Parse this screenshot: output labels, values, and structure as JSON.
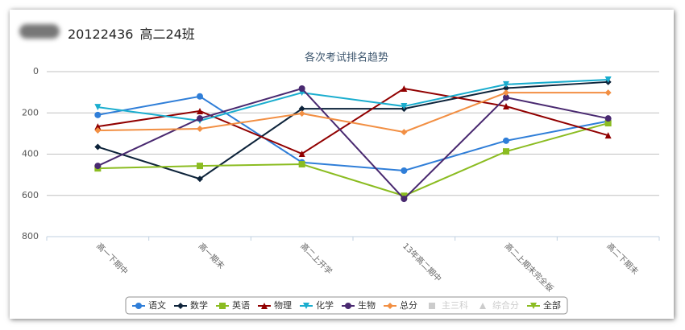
{
  "header": {
    "student_id": "20122436",
    "class_name": "高二24班"
  },
  "chart_data": {
    "type": "line",
    "title": "各次考试排名趋势",
    "categories": [
      "高一下期中",
      "高一期末",
      "高二上开学",
      "13年高二期中",
      "高二上期末完全版",
      "高二下期末"
    ],
    "ylim": [
      0,
      800
    ],
    "yticks": [
      0,
      200,
      400,
      600,
      800
    ],
    "y_reversed": true,
    "grid": true,
    "legend": "bottom",
    "series": [
      {
        "name": "语文",
        "color": "#2f7ed8",
        "marker": "circle",
        "values": [
          210,
          120,
          440,
          480,
          335,
          240
        ]
      },
      {
        "name": "数学",
        "color": "#0d233a",
        "marker": "diamond",
        "values": [
          365,
          520,
          180,
          180,
          80,
          50
        ]
      },
      {
        "name": "英语",
        "color": "#8bbc21",
        "marker": "square",
        "values": [
          469,
          457,
          449,
          602,
          387,
          250
        ]
      },
      {
        "name": "物理",
        "color": "#910000",
        "marker": "triangle",
        "values": [
          266,
          191,
          398,
          82,
          168,
          309
        ]
      },
      {
        "name": "化学",
        "color": "#1aadce",
        "marker": "triangle-down",
        "values": [
          172,
          238,
          102,
          168,
          62,
          39
        ]
      },
      {
        "name": "生物",
        "color": "#492970",
        "marker": "circle",
        "values": [
          457,
          227,
          82,
          617,
          125,
          227
        ]
      },
      {
        "name": "总分",
        "color": "#f28f43",
        "marker": "diamond",
        "values": [
          285,
          277,
          203,
          293,
          102,
          102
        ]
      }
    ],
    "hidden_series": [
      {
        "name": "主三科",
        "marker": "square"
      },
      {
        "name": "综合分",
        "marker": "triangle"
      }
    ],
    "legend_all": {
      "name": "全部",
      "color": "#8bbc21",
      "marker": "triangle-down"
    }
  }
}
